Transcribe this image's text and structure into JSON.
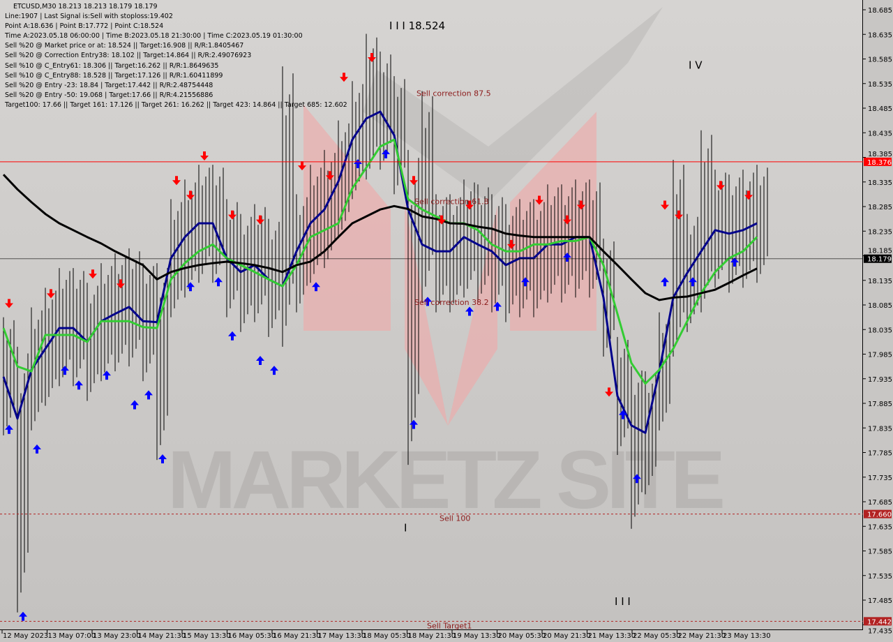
{
  "header": {
    "symbol_line": "ETCUSD,M30  18.213 18.213 18.179 18.179",
    "lines": [
      "Line:1907 | Last Signal is:Sell with stoploss:19.402",
      "Point A:18.636 | Point B:17.772 | Point C:18.524",
      "Time A:2023.05.18 06:00:00 | Time B:2023.05.18 21:30:00 | Time C:2023.05.19 01:30:00",
      "Sell %20 @ Market price or at: 18.524 || Target:16.908 || R/R:1.8405467",
      "Sell %20 @ Correction Entry38: 18.102 || Target:14.864 || R/R:2.49076923",
      "Sell %10 @ C_Entry61: 18.306 || Target:16.262 || R/R:1.8649635",
      "Sell %10 @ C_Entry88: 18.528 || Target:17.126 || R/R:1.60411899",
      "Sell %20 @ Entry -23: 18.84 | Target:17.442 || R/R:2.48754448",
      "Sell %20 @ Entry -50: 19.068 | Target:17.66 || R/R:4.21556886",
      "Target100: 17.66 || Target 161: 17.126 || Target 261: 16.262 || Target 423: 14.864 || Target 685: 12.602"
    ]
  },
  "watermark": "MARKETZ SITE",
  "chart_data": {
    "type": "bar",
    "ylim": [
      17.435,
      18.71
    ],
    "yticks": [
      18.685,
      18.635,
      18.585,
      18.535,
      18.485,
      18.435,
      18.385,
      18.335,
      18.285,
      18.235,
      18.185,
      18.135,
      18.085,
      18.035,
      17.985,
      17.935,
      17.885,
      17.835,
      17.785,
      17.735,
      17.685,
      17.635,
      17.585,
      17.535,
      17.485,
      17.435
    ],
    "xticks": [
      "12 May 2023",
      "13 May 07:00",
      "13 May 23:00",
      "14 May 21:30",
      "15 May 13:30",
      "16 May 05:30",
      "16 May 21:30",
      "17 May 13:30",
      "18 May 05:30",
      "18 May 21:30",
      "19 May 13:30",
      "20 May 05:30",
      "20 May 21:30",
      "21 May 13:30",
      "22 May 05:30",
      "22 May 21:30",
      "23 May 13:30"
    ],
    "high": [
      18.06,
      18.0,
      18.08,
      18.12,
      18.16,
      18.16,
      18.13,
      18.17,
      18.19,
      18.2,
      18.17,
      18.17,
      18.3,
      18.34,
      18.37,
      18.37,
      18.3,
      18.27,
      18.29,
      18.26,
      18.57,
      18.31,
      18.37,
      18.4,
      18.46,
      18.54,
      18.636,
      18.6,
      18.55,
      18.4,
      18.52,
      18.31,
      18.31,
      18.34,
      18.33,
      18.31,
      18.29,
      18.3,
      18.3,
      18.33,
      18.33,
      18.34,
      18.34,
      18.22,
      18.02,
      17.96,
      17.95,
      18.07,
      18.38,
      18.27,
      18.44,
      18.36,
      18.35,
      18.36,
      18.37
    ],
    "low": [
      17.82,
      17.46,
      17.83,
      17.88,
      17.92,
      17.92,
      17.89,
      17.93,
      17.95,
      17.96,
      17.93,
      17.77,
      18.06,
      18.1,
      18.13,
      18.13,
      18.06,
      18.03,
      18.05,
      18.02,
      18.0,
      18.07,
      18.13,
      18.16,
      18.22,
      18.3,
      18.34,
      18.36,
      18.31,
      17.76,
      18.09,
      18.07,
      18.07,
      18.1,
      18.09,
      18.07,
      18.05,
      18.06,
      18.06,
      18.09,
      18.09,
      18.1,
      18.1,
      17.98,
      17.78,
      17.63,
      17.7,
      17.83,
      17.98,
      18.03,
      18.07,
      18.12,
      18.11,
      18.12,
      18.13
    ],
    "series": [
      {
        "color": "#00008b",
        "values": [
          17.939,
          17.854,
          17.953,
          17.996,
          18.038,
          18.038,
          18.01,
          18.052,
          18.067,
          18.081,
          18.052,
          18.05,
          18.18,
          18.223,
          18.251,
          18.251,
          18.18,
          18.152,
          18.166,
          18.137,
          18.123,
          18.194,
          18.251,
          18.279,
          18.336,
          18.421,
          18.464,
          18.478,
          18.43,
          18.279,
          18.208,
          18.194,
          18.194,
          18.223,
          18.208,
          18.194,
          18.166,
          18.18,
          18.18,
          18.208,
          18.208,
          18.223,
          18.223,
          18.1,
          17.9,
          17.84,
          17.825,
          17.95,
          18.1,
          18.15,
          18.194,
          18.237,
          18.23,
          18.237,
          18.251
        ]
      },
      {
        "color": "#33cc33",
        "values": [
          18.038,
          17.96,
          17.95,
          18.024,
          18.024,
          18.024,
          18.01,
          18.052,
          18.052,
          18.052,
          18.04,
          18.038,
          18.137,
          18.17,
          18.194,
          18.208,
          18.18,
          18.166,
          18.152,
          18.137,
          18.123,
          18.166,
          18.223,
          18.237,
          18.251,
          18.322,
          18.364,
          18.407,
          18.421,
          18.3,
          18.279,
          18.265,
          18.251,
          18.251,
          18.237,
          18.208,
          18.194,
          18.194,
          18.208,
          18.208,
          18.215,
          18.215,
          18.223,
          18.166,
          18.067,
          17.967,
          17.925,
          17.953,
          17.996,
          18.052,
          18.109,
          18.152,
          18.18,
          18.194,
          18.223
        ]
      },
      {
        "color": "#000000",
        "values": [
          18.35,
          18.32,
          18.294,
          18.27,
          18.251,
          18.237,
          18.223,
          18.21,
          18.194,
          18.18,
          18.166,
          18.137,
          18.152,
          18.16,
          18.166,
          18.17,
          18.173,
          18.17,
          18.166,
          18.16,
          18.152,
          18.166,
          18.173,
          18.194,
          18.223,
          18.251,
          18.265,
          18.279,
          18.286,
          18.28,
          18.265,
          18.26,
          18.251,
          18.25,
          18.244,
          18.24,
          18.23,
          18.226,
          18.223,
          18.223,
          18.223,
          18.223,
          18.223,
          18.194,
          18.166,
          18.137,
          18.109,
          18.095,
          18.1,
          18.102,
          18.109,
          18.116,
          18.13,
          18.145,
          18.159
        ]
      }
    ],
    "levels": [
      {
        "price": 18.376,
        "label": "18.376",
        "color": "#ff0000",
        "style": "solid",
        "text": ""
      },
      {
        "price": 18.179,
        "label": "18.179",
        "color": "#000000",
        "style": "solid",
        "text": ""
      },
      {
        "price": 17.66,
        "label": "17.660",
        "color": "#b22222",
        "style": "dashed",
        "text": "Sell 100"
      },
      {
        "price": 17.442,
        "label": "17.442",
        "color": "#b22222",
        "style": "dashed",
        "text": "Sell Target1"
      }
    ],
    "annotations": [
      {
        "text": "Sell correction 87.5",
        "index": 29.6,
        "price": 18.51,
        "color": "#8b1a1a"
      },
      {
        "text": "Sell correction 61.8",
        "index": 29.45,
        "price": 18.29,
        "color": "#8b1a1a"
      },
      {
        "text": "Sell correction 38.2",
        "index": 29.45,
        "price": 18.085,
        "color": "#8b1a1a"
      },
      {
        "text": "I I I 18.524",
        "index": 27.65,
        "price": 18.645,
        "color": "#000000"
      },
      {
        "text": "I V",
        "index": 49.1,
        "price": 18.565,
        "color": "#000000"
      },
      {
        "text": "I",
        "index": 28.7,
        "price": 17.625,
        "color": "#000000"
      },
      {
        "text": "I I I",
        "index": 43.8,
        "price": 17.475,
        "color": "#000000"
      }
    ],
    "sell_signals": [
      [
        0,
        18.08
      ],
      [
        3,
        18.1
      ],
      [
        6,
        18.14
      ],
      [
        8,
        18.12
      ],
      [
        12,
        18.33
      ],
      [
        13,
        18.3
      ],
      [
        14,
        18.38
      ],
      [
        16,
        18.26
      ],
      [
        18,
        18.25
      ],
      [
        21,
        18.36
      ],
      [
        23,
        18.34
      ],
      [
        24,
        18.54
      ],
      [
        26,
        18.58
      ],
      [
        29,
        18.33
      ],
      [
        31,
        18.25
      ],
      [
        33,
        18.28
      ],
      [
        36,
        18.2
      ],
      [
        38,
        18.29
      ],
      [
        40,
        18.25
      ],
      [
        41,
        18.28
      ],
      [
        43,
        17.9
      ],
      [
        47,
        18.28
      ],
      [
        48,
        18.26
      ],
      [
        51,
        18.32
      ],
      [
        53,
        18.3
      ]
    ],
    "buy_signals": [
      [
        0,
        17.84
      ],
      [
        1,
        17.46
      ],
      [
        2,
        17.8
      ],
      [
        4,
        17.96
      ],
      [
        5,
        17.93
      ],
      [
        7,
        17.95
      ],
      [
        9,
        17.89
      ],
      [
        10,
        17.91
      ],
      [
        11,
        17.78
      ],
      [
        13,
        18.13
      ],
      [
        15,
        18.14
      ],
      [
        16,
        18.03
      ],
      [
        18,
        17.98
      ],
      [
        19,
        17.96
      ],
      [
        22,
        18.13
      ],
      [
        25,
        18.38
      ],
      [
        27,
        18.4
      ],
      [
        29,
        17.85
      ],
      [
        30,
        18.1
      ],
      [
        33,
        18.08
      ],
      [
        35,
        18.09
      ],
      [
        37,
        18.14
      ],
      [
        40,
        18.19
      ],
      [
        44,
        17.87
      ],
      [
        45,
        17.74
      ],
      [
        47,
        18.14
      ],
      [
        49,
        18.14
      ],
      [
        52,
        18.18
      ]
    ]
  }
}
